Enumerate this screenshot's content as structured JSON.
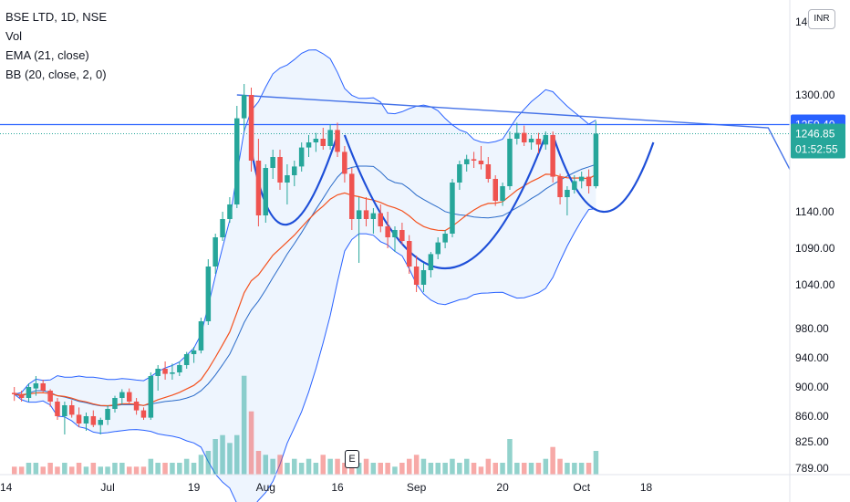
{
  "legend": {
    "symbol": "BSE LTD, 1D, NSE",
    "vol": "Vol",
    "ema": "EMA (21, close)",
    "bb": "BB (20, close, 2, 0)"
  },
  "currency": "INR",
  "event_badge": "E",
  "price_tags": {
    "resistance": "1259.40",
    "last_price": "1246.85",
    "countdown": "01:52:55"
  },
  "colors": {
    "up": "#26a69a",
    "down": "#ef5350",
    "bb_line": "#2962ff",
    "bb_fill": "#e3effd",
    "ema": "#f4511e",
    "pattern": "#1e4fd8",
    "trendline": "#4472e8"
  },
  "chart_data": {
    "type": "candlestick",
    "y_ticks": [
      "1400.00",
      "1300.00",
      "1140.00",
      "1090.00",
      "1040.00",
      "980.00",
      "940.00",
      "900.00",
      "860.00",
      "825.00",
      "789.00"
    ],
    "x_ticks": [
      "14",
      "Jul",
      "19",
      "Aug",
      "16",
      "Sep",
      "20",
      "Oct",
      "18"
    ],
    "candles": [
      [
        892,
        900,
        881,
        890
      ],
      [
        889,
        895,
        880,
        885
      ],
      [
        885,
        905,
        880,
        900
      ],
      [
        898,
        915,
        888,
        905
      ],
      [
        905,
        910,
        893,
        895
      ],
      [
        895,
        897,
        873,
        880
      ],
      [
        880,
        885,
        855,
        860
      ],
      [
        860,
        880,
        835,
        875
      ],
      [
        875,
        882,
        858,
        862
      ],
      [
        862,
        872,
        845,
        850
      ],
      [
        850,
        865,
        840,
        860
      ],
      [
        860,
        868,
        845,
        848
      ],
      [
        848,
        858,
        835,
        855
      ],
      [
        855,
        875,
        848,
        870
      ],
      [
        870,
        888,
        865,
        885
      ],
      [
        885,
        897,
        876,
        893
      ],
      [
        893,
        898,
        878,
        880
      ],
      [
        880,
        885,
        862,
        868
      ],
      [
        868,
        872,
        855,
        858
      ],
      [
        858,
        920,
        855,
        915
      ],
      [
        915,
        930,
        895,
        925
      ],
      [
        925,
        935,
        910,
        918
      ],
      [
        918,
        932,
        910,
        920
      ],
      [
        920,
        935,
        915,
        930
      ],
      [
        930,
        948,
        925,
        945
      ],
      [
        945,
        955,
        933,
        950
      ],
      [
        950,
        995,
        946,
        990
      ],
      [
        990,
        1075,
        985,
        1065
      ],
      [
        1065,
        1110,
        1055,
        1105
      ],
      [
        1105,
        1140,
        1100,
        1130
      ],
      [
        1130,
        1160,
        1125,
        1150
      ],
      [
        1150,
        1285,
        1145,
        1268
      ],
      [
        1268,
        1315,
        1250,
        1300
      ],
      [
        1300,
        1310,
        1195,
        1210
      ],
      [
        1210,
        1240,
        1120,
        1135
      ],
      [
        1135,
        1205,
        1125,
        1200
      ],
      [
        1200,
        1225,
        1185,
        1215
      ],
      [
        1215,
        1225,
        1170,
        1180
      ],
      [
        1180,
        1205,
        1150,
        1190
      ],
      [
        1190,
        1210,
        1175,
        1202
      ],
      [
        1202,
        1235,
        1195,
        1228
      ],
      [
        1228,
        1245,
        1215,
        1235
      ],
      [
        1235,
        1248,
        1222,
        1240
      ],
      [
        1240,
        1255,
        1225,
        1230
      ],
      [
        1230,
        1260,
        1225,
        1252
      ],
      [
        1252,
        1262,
        1215,
        1222
      ],
      [
        1222,
        1230,
        1180,
        1192
      ],
      [
        1192,
        1200,
        1115,
        1130
      ],
      [
        1130,
        1160,
        1070,
        1142
      ],
      [
        1142,
        1160,
        1120,
        1130
      ],
      [
        1130,
        1145,
        1110,
        1138
      ],
      [
        1138,
        1150,
        1112,
        1120
      ],
      [
        1120,
        1140,
        1090,
        1105
      ],
      [
        1105,
        1120,
        1085,
        1115
      ],
      [
        1115,
        1125,
        1095,
        1100
      ],
      [
        1100,
        1108,
        1055,
        1065
      ],
      [
        1065,
        1080,
        1030,
        1040
      ],
      [
        1040,
        1070,
        1030,
        1060
      ],
      [
        1060,
        1085,
        1050,
        1082
      ],
      [
        1082,
        1105,
        1075,
        1098
      ],
      [
        1098,
        1115,
        1090,
        1110
      ],
      [
        1110,
        1185,
        1105,
        1180
      ],
      [
        1180,
        1210,
        1170,
        1205
      ],
      [
        1205,
        1218,
        1195,
        1212
      ],
      [
        1212,
        1222,
        1200,
        1210
      ],
      [
        1210,
        1230,
        1198,
        1205
      ],
      [
        1205,
        1215,
        1180,
        1185
      ],
      [
        1185,
        1190,
        1148,
        1155
      ],
      [
        1155,
        1180,
        1148,
        1175
      ],
      [
        1175,
        1250,
        1170,
        1240
      ],
      [
        1240,
        1262,
        1232,
        1248
      ],
      [
        1248,
        1258,
        1230,
        1235
      ],
      [
        1235,
        1245,
        1225,
        1240
      ],
      [
        1240,
        1248,
        1220,
        1232
      ],
      [
        1232,
        1250,
        1225,
        1245
      ],
      [
        1245,
        1250,
        1180,
        1188
      ],
      [
        1188,
        1192,
        1150,
        1160
      ],
      [
        1160,
        1175,
        1135,
        1170
      ],
      [
        1170,
        1190,
        1165,
        1182
      ],
      [
        1182,
        1195,
        1172,
        1188
      ],
      [
        1188,
        1198,
        1165,
        1175
      ],
      [
        1175,
        1264,
        1172,
        1247
      ]
    ],
    "volume": [
      2,
      2,
      3,
      3,
      2,
      3,
      2,
      3,
      2,
      3,
      2,
      3,
      2,
      2,
      3,
      3,
      2,
      2,
      2,
      4,
      3,
      3,
      3,
      3,
      4,
      3,
      5,
      6,
      9,
      10,
      8,
      10,
      25,
      16,
      6,
      5,
      4,
      5,
      3,
      4,
      3,
      4,
      3,
      5,
      4,
      4,
      3,
      4,
      3,
      4,
      3,
      3,
      3,
      2,
      3,
      4,
      5,
      4,
      3,
      3,
      3,
      4,
      3,
      4,
      3,
      2,
      4,
      3,
      3,
      9,
      3,
      3,
      3,
      3,
      4,
      7,
      4,
      3,
      3,
      3,
      3,
      6
    ],
    "volume_max": 30,
    "ylim": [
      780,
      1430
    ],
    "x_range": [
      -2,
      108
    ],
    "resistance_level": 1259.4,
    "last_price": 1246.85
  }
}
